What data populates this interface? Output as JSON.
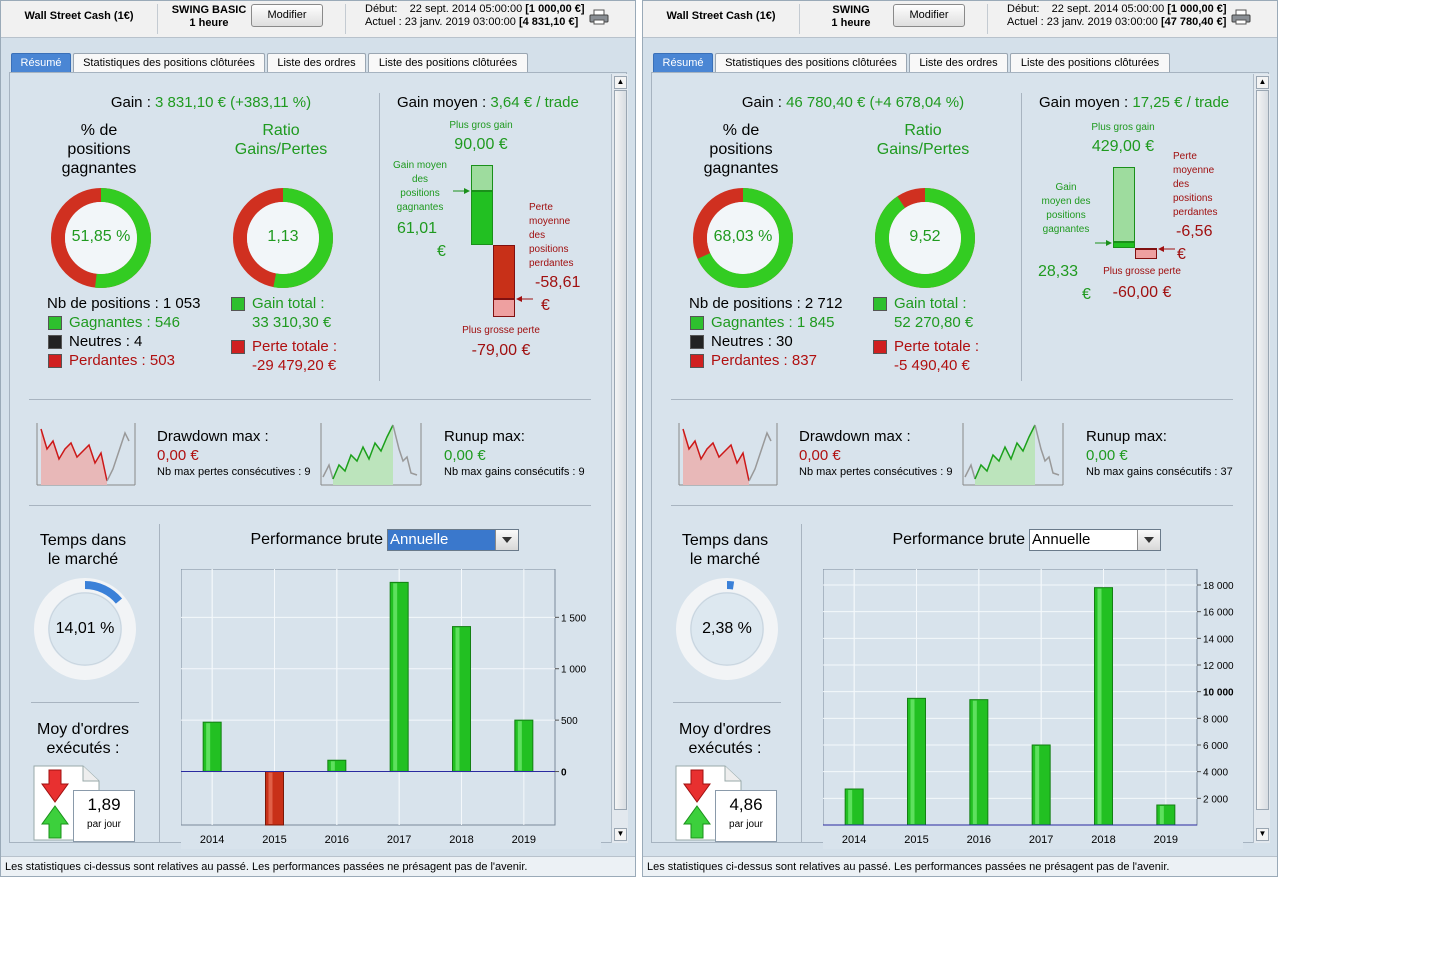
{
  "windows": [
    {
      "header": {
        "instrument": "Wall Street Cash (1€)",
        "strategy_line1": "SWING BASIC",
        "strategy_line2": "1 heure",
        "modify_label": "Modifier",
        "start_label": "Début:",
        "start_date": "22 sept. 2014 05:00:00",
        "start_value": "[1 000,00 €]",
        "current_label": "Actuel :",
        "current_date": "23 janv. 2019 03:00:00",
        "current_value": "[4 831,10 €]"
      },
      "tabs": [
        "Résumé",
        "Statistiques des positions clôturées",
        "Liste des ordres",
        "Liste des positions clôturées"
      ],
      "gain": {
        "label": "Gain :",
        "value": "3 831,10 € (+383,11 %)"
      },
      "winning_pct": {
        "title_l1": "% de",
        "title_l2": "positions",
        "title_l3": "gagnantes",
        "value": "51,85 %",
        "green_fraction": 0.5185
      },
      "ratio": {
        "title_l1": "Ratio",
        "title_l2": "Gains/Pertes",
        "value": "1,13",
        "green_fraction": 0.53
      },
      "positions": {
        "count_label": "Nb de positions : 1 053",
        "winners": "Gagnantes : 546",
        "neutral": "Neutres : 4",
        "losers": "Perdantes : 503"
      },
      "totals": {
        "gain_label": "Gain total :",
        "gain_value": "33 310,30 €",
        "loss_label": "Perte totale :",
        "loss_value": "-29 479,20 €"
      },
      "avg_gain": {
        "label": "Gain moyen :",
        "value": "3,64 € / trade"
      },
      "trades": {
        "biggest_gain_label": "Plus gros gain",
        "biggest_gain_value": "90,00 €",
        "avg_win_l1": "Gain moyen",
        "avg_win_l2": "des",
        "avg_win_l3": "positions",
        "avg_win_l4": "gagnantes",
        "avg_win_value_l1": "61,01",
        "avg_win_value_l2": "€",
        "avg_loss_l1": "Perte",
        "avg_loss_l2": "moyenne",
        "avg_loss_l3": "des",
        "avg_loss_l4": "positions",
        "avg_loss_l5": "perdantes",
        "avg_loss_value_l1": "-58,61",
        "avg_loss_value_l2": "€",
        "biggest_loss_label": "Plus grosse perte",
        "biggest_loss_value": "-79,00 €"
      },
      "drawdown": {
        "label": "Drawdown max :",
        "value": "0,00 €",
        "sub": "Nb max pertes consécutives : 9"
      },
      "runup": {
        "label": "Runup max:",
        "value": "0,00 €",
        "sub": "Nb max gains consécutifs : 9"
      },
      "time_market": {
        "title_l1": "Temps dans",
        "title_l2": "le marché",
        "value": "14,01 %",
        "fraction": 0.1401
      },
      "orders": {
        "title_l1": "Moy d'ordres",
        "title_l2": "exécutés :",
        "value": "1,89",
        "unit": "par jour"
      },
      "perf": {
        "label": "Performance brute",
        "select_value": "Annuelle"
      },
      "footer": "Les statistiques ci-dessus sont relatives au passé. Les performances passées ne présagent pas de l'avenir."
    },
    {
      "header": {
        "instrument": "Wall Street Cash (1€)",
        "strategy_line1": "SWING",
        "strategy_line2": "1 heure",
        "modify_label": "Modifier",
        "start_label": "Début:",
        "start_date": "22 sept. 2014 05:00:00",
        "start_value": "[1 000,00 €]",
        "current_label": "Actuel :",
        "current_date": "23 janv. 2019 03:00:00",
        "current_value": "[47 780,40 €]"
      },
      "tabs": [
        "Résumé",
        "Statistiques des positions clôturées",
        "Liste des ordres",
        "Liste des positions clôturées"
      ],
      "gain": {
        "label": "Gain :",
        "value": "46 780,40 € (+4 678,04 %)"
      },
      "winning_pct": {
        "title_l1": "% de",
        "title_l2": "positions",
        "title_l3": "gagnantes",
        "value": "68,03 %",
        "green_fraction": 0.6803
      },
      "ratio": {
        "title_l1": "Ratio",
        "title_l2": "Gains/Pertes",
        "value": "9,52",
        "green_fraction": 0.905
      },
      "positions": {
        "count_label": "Nb de positions : 2 712",
        "winners": "Gagnantes : 1 845",
        "neutral": "Neutres : 30",
        "losers": "Perdantes : 837"
      },
      "totals": {
        "gain_label": "Gain total :",
        "gain_value": "52 270,80 €",
        "loss_label": "Perte totale :",
        "loss_value": "-5 490,40 €"
      },
      "avg_gain": {
        "label": "Gain moyen :",
        "value": "17,25 € / trade"
      },
      "trades": {
        "biggest_gain_label": "Plus gros gain",
        "biggest_gain_value": "429,00 €",
        "avg_win_l1": "Gain",
        "avg_win_l2": "moyen des",
        "avg_win_l3": "positions",
        "avg_win_l4": "gagnantes",
        "avg_win_value_l1": "28,33",
        "avg_win_value_l2": "€",
        "avg_loss_l1": "Perte",
        "avg_loss_l2": "moyenne",
        "avg_loss_l3": "des",
        "avg_loss_l4": "positions",
        "avg_loss_l5": "perdantes",
        "avg_loss_value_l1": "-6,56",
        "avg_loss_value_l2": "€",
        "biggest_loss_label": "Plus grosse perte",
        "biggest_loss_value": "-60,00 €"
      },
      "drawdown": {
        "label": "Drawdown max :",
        "value": "0,00 €",
        "sub": "Nb max pertes consécutives : 9"
      },
      "runup": {
        "label": "Runup max:",
        "value": "0,00 €",
        "sub": "Nb max gains consécutifs : 37"
      },
      "time_market": {
        "title_l1": "Temps dans",
        "title_l2": "le marché",
        "value": "2,38 %",
        "fraction": 0.0238
      },
      "orders": {
        "title_l1": "Moy d'ordres",
        "title_l2": "exécutés :",
        "value": "4,86",
        "unit": "par jour"
      },
      "perf": {
        "label": "Performance brute",
        "select_value": "Annuelle"
      },
      "footer": "Les statistiques ci-dessus sont relatives au passé. Les performances passées ne présagent pas de l'avenir."
    }
  ],
  "colors": {
    "gain_green": "#1f9a1f",
    "loss_red": "#b01010",
    "bar_green": "#22c022",
    "bar_red": "#c83018",
    "accent_blue": "#3a78cc"
  },
  "chart_data": [
    {
      "type": "bar",
      "title": "",
      "categories": [
        "2014",
        "2015",
        "2016",
        "2017",
        "2018",
        "2019"
      ],
      "values": [
        480,
        -520,
        110,
        1840,
        1410,
        500
      ],
      "yticks": [
        {
          "value": 0,
          "label": "0"
        },
        {
          "value": 500,
          "label": "500"
        },
        {
          "value": 1000,
          "label": "1 000"
        },
        {
          "value": 1500,
          "label": "1 500"
        }
      ],
      "ylim": [
        -520,
        1970
      ],
      "grid": true
    },
    {
      "type": "bar",
      "title": "",
      "categories": [
        "2014",
        "2015",
        "2016",
        "2017",
        "2018",
        "2019"
      ],
      "values": [
        2700,
        9500,
        9400,
        6000,
        17800,
        1500
      ],
      "yticks": [
        {
          "value": 2000,
          "label": "2 000"
        },
        {
          "value": 4000,
          "label": "4 000"
        },
        {
          "value": 6000,
          "label": "6 000"
        },
        {
          "value": 8000,
          "label": "8 000"
        },
        {
          "value": 10000,
          "label": "10 000"
        },
        {
          "value": 12000,
          "label": "12 000"
        },
        {
          "value": 14000,
          "label": "14 000"
        },
        {
          "value": 16000,
          "label": "16 000"
        },
        {
          "value": 18000,
          "label": "18 000"
        }
      ],
      "ylim": [
        0,
        19200
      ],
      "grid": true
    }
  ]
}
